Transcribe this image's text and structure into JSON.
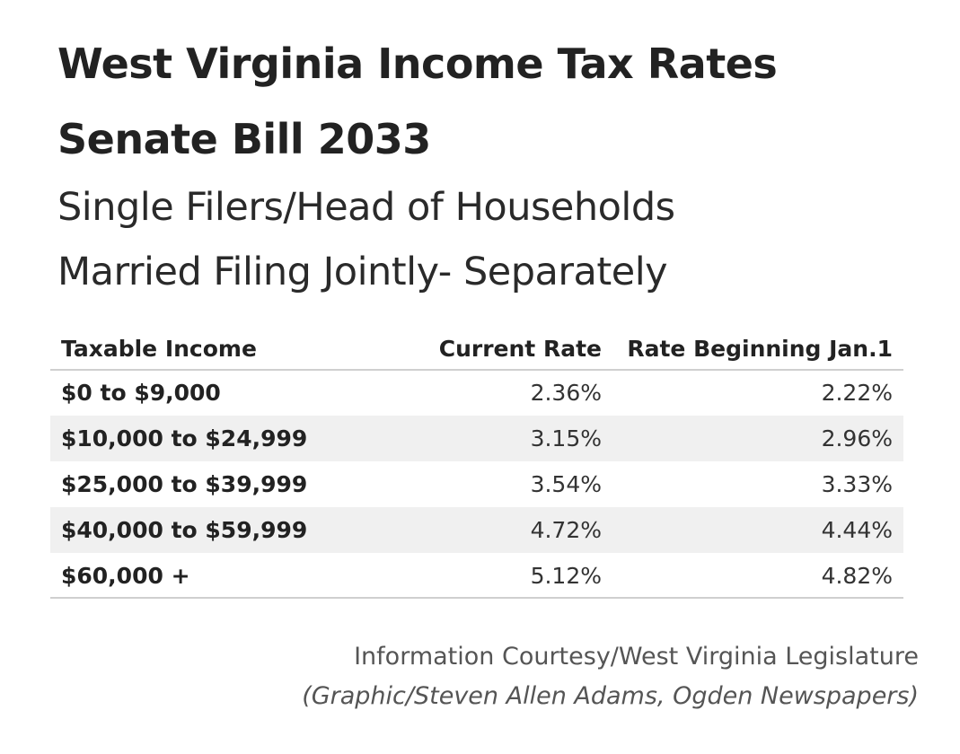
{
  "title": {
    "line1": "West Virginia Income Tax Rates",
    "line2": "Senate Bill 2033"
  },
  "subtitle": {
    "line1": "Single Filers/Head of Households",
    "line2": "Married Filing Jointly- Separately"
  },
  "chart_data": {
    "type": "table",
    "columns": [
      "Taxable Income",
      "Current Rate",
      "Rate Beginning Jan.1"
    ],
    "rows": [
      {
        "income": "$0 to $9,000",
        "current": "2.36%",
        "new": "2.22%"
      },
      {
        "income": "$10,000 to $24,999",
        "current": "3.15%",
        "new": "2.96%"
      },
      {
        "income": "$25,000 to $39,999",
        "current": "3.54%",
        "new": "3.33%"
      },
      {
        "income": "$40,000 to $59,999",
        "current": "4.72%",
        "new": "4.44%"
      },
      {
        "income": "$60,000 +",
        "current": "5.12%",
        "new": "4.82%"
      }
    ]
  },
  "credits": {
    "line1": "Information Courtesy/West Virginia Legislature",
    "line2": "(Graphic/Steven Allen Adams, Ogden Newspapers)"
  },
  "colors": {
    "text": "#222222",
    "shaded_row": "#f0f0f0",
    "rule": "#cfcfcf",
    "credit_text": "#555555"
  }
}
